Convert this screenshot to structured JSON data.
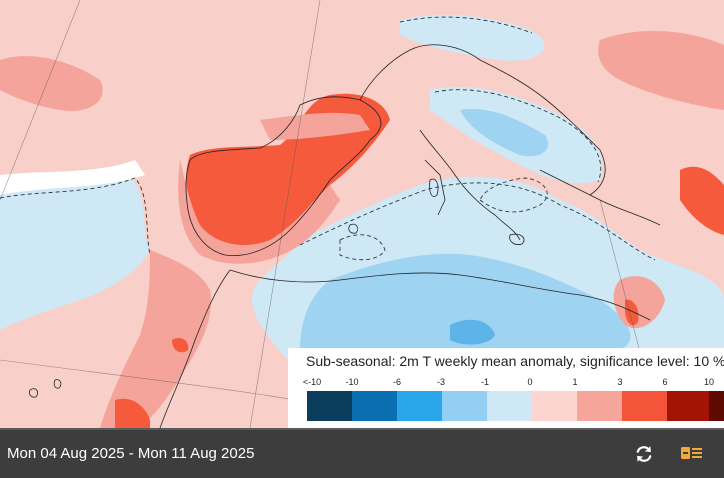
{
  "map": {
    "colors": {
      "ocean_pale": "#cfe8f6",
      "ocean_light": "#9fd3f2",
      "ocean_mid": "#5cb4e8",
      "land_pale": "#f8cfc9",
      "land_light": "#f4a49a",
      "land_hot": "#f55a3d",
      "land_hotter": "#a01506",
      "white": "#ffffff"
    }
  },
  "legend": {
    "title": "Sub-seasonal: 2m T weekly mean anomaly, significance level: 10 %",
    "ticks": [
      "<-10",
      "-10",
      "-6",
      "-3",
      "-1",
      "0",
      "1",
      "3",
      "6",
      "10"
    ],
    "swatch_colors": [
      "#0b3e5d",
      "#0a6fb0",
      "#2aa7ea",
      "#92cff2",
      "#cfe8f6",
      "#fcd5d0",
      "#f6a59b",
      "#f4553a",
      "#a41405",
      "#5e0a03"
    ]
  },
  "footer": {
    "date_range": "Mon 04 Aug 2025 - Mon 11 Aug 2025",
    "refresh_icon": "refresh-icon",
    "layers_icon": "legend-list-icon",
    "accent_color": "#f2a93b"
  }
}
